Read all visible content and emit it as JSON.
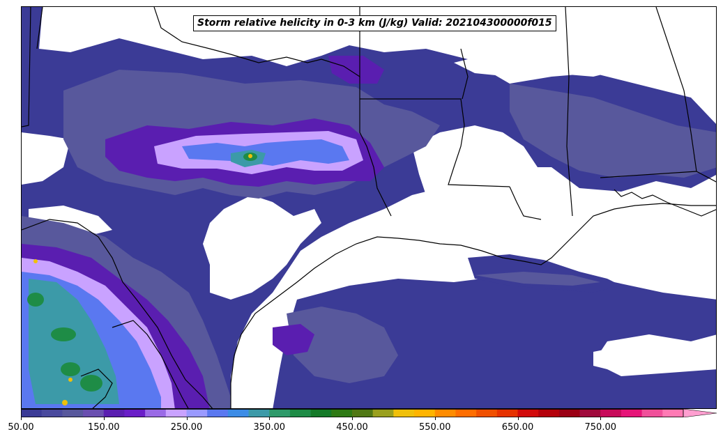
{
  "title": "Storm relative helicity in 0-3 km (J/kg) Valid: 202104300000f015",
  "colorbar": {
    "min": 50,
    "max": 850,
    "step": 25,
    "extend": "max",
    "tick_labels": [
      "50.00",
      "150.00",
      "250.00",
      "350.00",
      "450.00",
      "550.00",
      "650.00",
      "750.00"
    ],
    "tick_values": [
      50,
      150,
      250,
      350,
      450,
      550,
      650,
      750
    ],
    "colors": [
      "#3b3b96",
      "#4a4a9e",
      "#58589c",
      "#6a4fb0",
      "#5a1eb0",
      "#6a1ec8",
      "#9a6ae6",
      "#c9a2ff",
      "#9a9aff",
      "#5a78f0",
      "#3c8ce6",
      "#3c9aa8",
      "#2e9a6a",
      "#1e8c46",
      "#147a28",
      "#2e7a14",
      "#507814",
      "#9aa01e",
      "#f0c00a",
      "#ffb400",
      "#ff8c00",
      "#ff6e00",
      "#f05000",
      "#e63200",
      "#d20a0a",
      "#b4000a",
      "#9b0014",
      "#a00a3c",
      "#c80a5a",
      "#e61478",
      "#f0509a",
      "#ff7ab4"
    ],
    "extend_color": "#ff9fd0"
  },
  "map": {
    "region": "Texas / Gulf Coast",
    "field_colors": {
      "low": "#3b3b96",
      "mid": "#58589c",
      "purple": "#5a1eb0",
      "violet": "#9a6ae6",
      "lilac": "#c9a2ff",
      "blue": "#5a78f0",
      "cyan": "#3c9aa8",
      "green": "#1e8c46",
      "yellow": "#f0c00a"
    }
  }
}
